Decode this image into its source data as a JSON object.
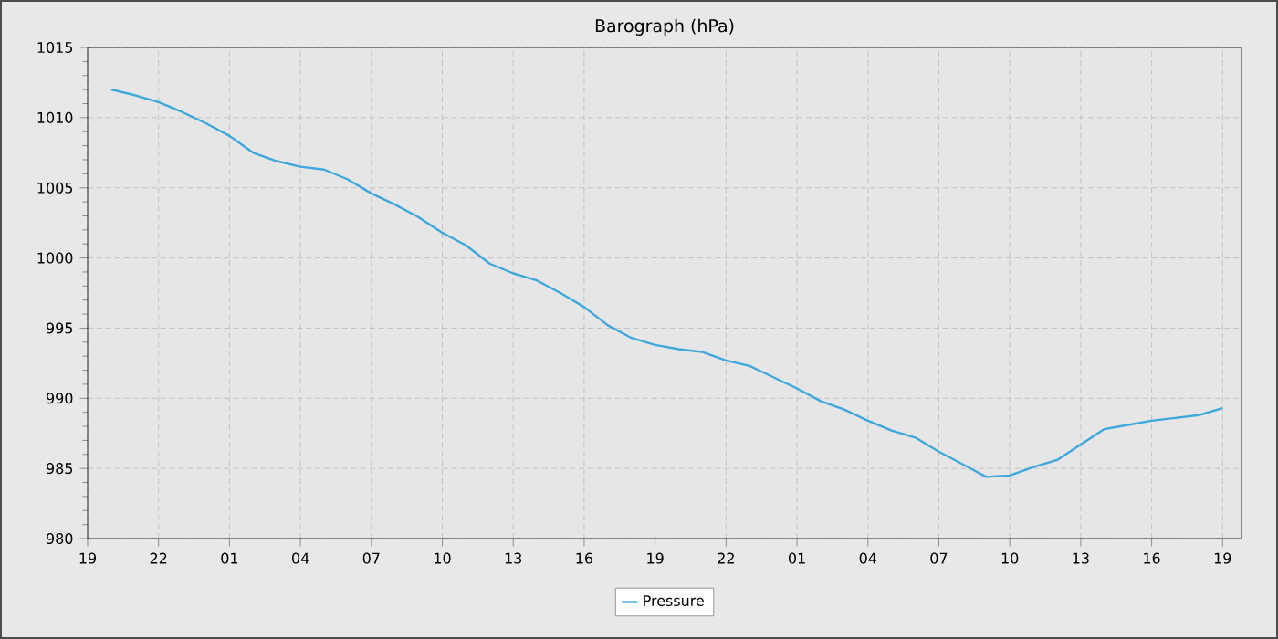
{
  "chart_data": {
    "type": "line",
    "title": "Barograph (hPa)",
    "categories": [
      "19",
      null,
      null,
      "22",
      null,
      null,
      "01",
      null,
      null,
      "04",
      null,
      null,
      "07",
      null,
      null,
      "10",
      null,
      null,
      "13",
      null,
      null,
      "16",
      null,
      null,
      "19",
      null,
      null,
      "22",
      null,
      null,
      "01",
      null,
      null,
      "04",
      null,
      null,
      "07",
      null,
      null,
      "10",
      null,
      null,
      "13",
      null,
      null,
      "16",
      null,
      null,
      "19"
    ],
    "series": [
      {
        "name": "Pressure",
        "color": "#3ea8dc",
        "values": [
          null,
          1012.0,
          1011.6,
          1011.1,
          1010.4,
          1009.6,
          1008.7,
          1007.5,
          1006.9,
          1006.5,
          1006.3,
          1005.6,
          1004.6,
          1003.8,
          1002.9,
          1001.8,
          1000.9,
          999.6,
          998.9,
          998.4,
          997.5,
          996.5,
          995.2,
          994.3,
          993.8,
          993.5,
          993.3,
          992.7,
          992.3,
          991.5,
          990.7,
          989.8,
          989.2,
          988.4,
          987.7,
          987.2,
          986.2,
          985.3,
          984.4,
          984.5,
          985.1,
          985.6,
          986.7,
          987.8,
          988.1,
          988.4,
          988.6,
          988.8,
          989.3
        ]
      }
    ],
    "ylim": [
      980,
      1015
    ],
    "yticks": [
      980,
      985,
      990,
      995,
      1000,
      1005,
      1010,
      1015
    ],
    "grid": true,
    "legend": "bottom",
    "marker": "none",
    "line_style": "solid"
  }
}
